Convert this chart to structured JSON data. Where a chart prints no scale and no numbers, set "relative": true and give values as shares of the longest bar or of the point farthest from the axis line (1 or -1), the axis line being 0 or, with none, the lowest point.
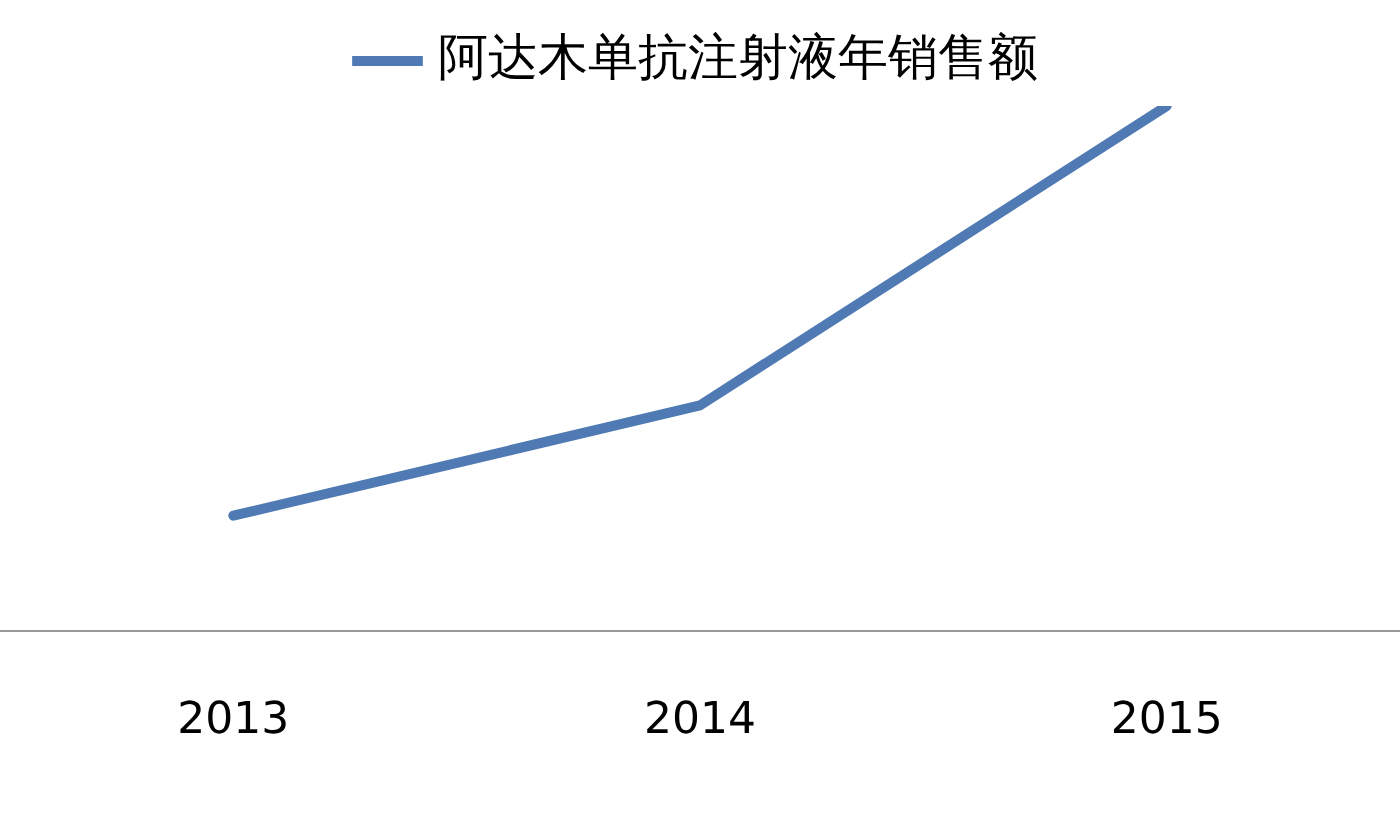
{
  "chart_data": {
    "type": "line",
    "categories": [
      "2013",
      "2014",
      "2015"
    ],
    "series": [
      {
        "name": "阿达木单抗注射液年销售额",
        "color": "#4f7ab3",
        "values": [
          0.22,
          0.43,
          1
        ]
      }
    ],
    "relative": true,
    "legend": "top",
    "marker": "none",
    "line_style": "solid",
    "grid": false
  }
}
